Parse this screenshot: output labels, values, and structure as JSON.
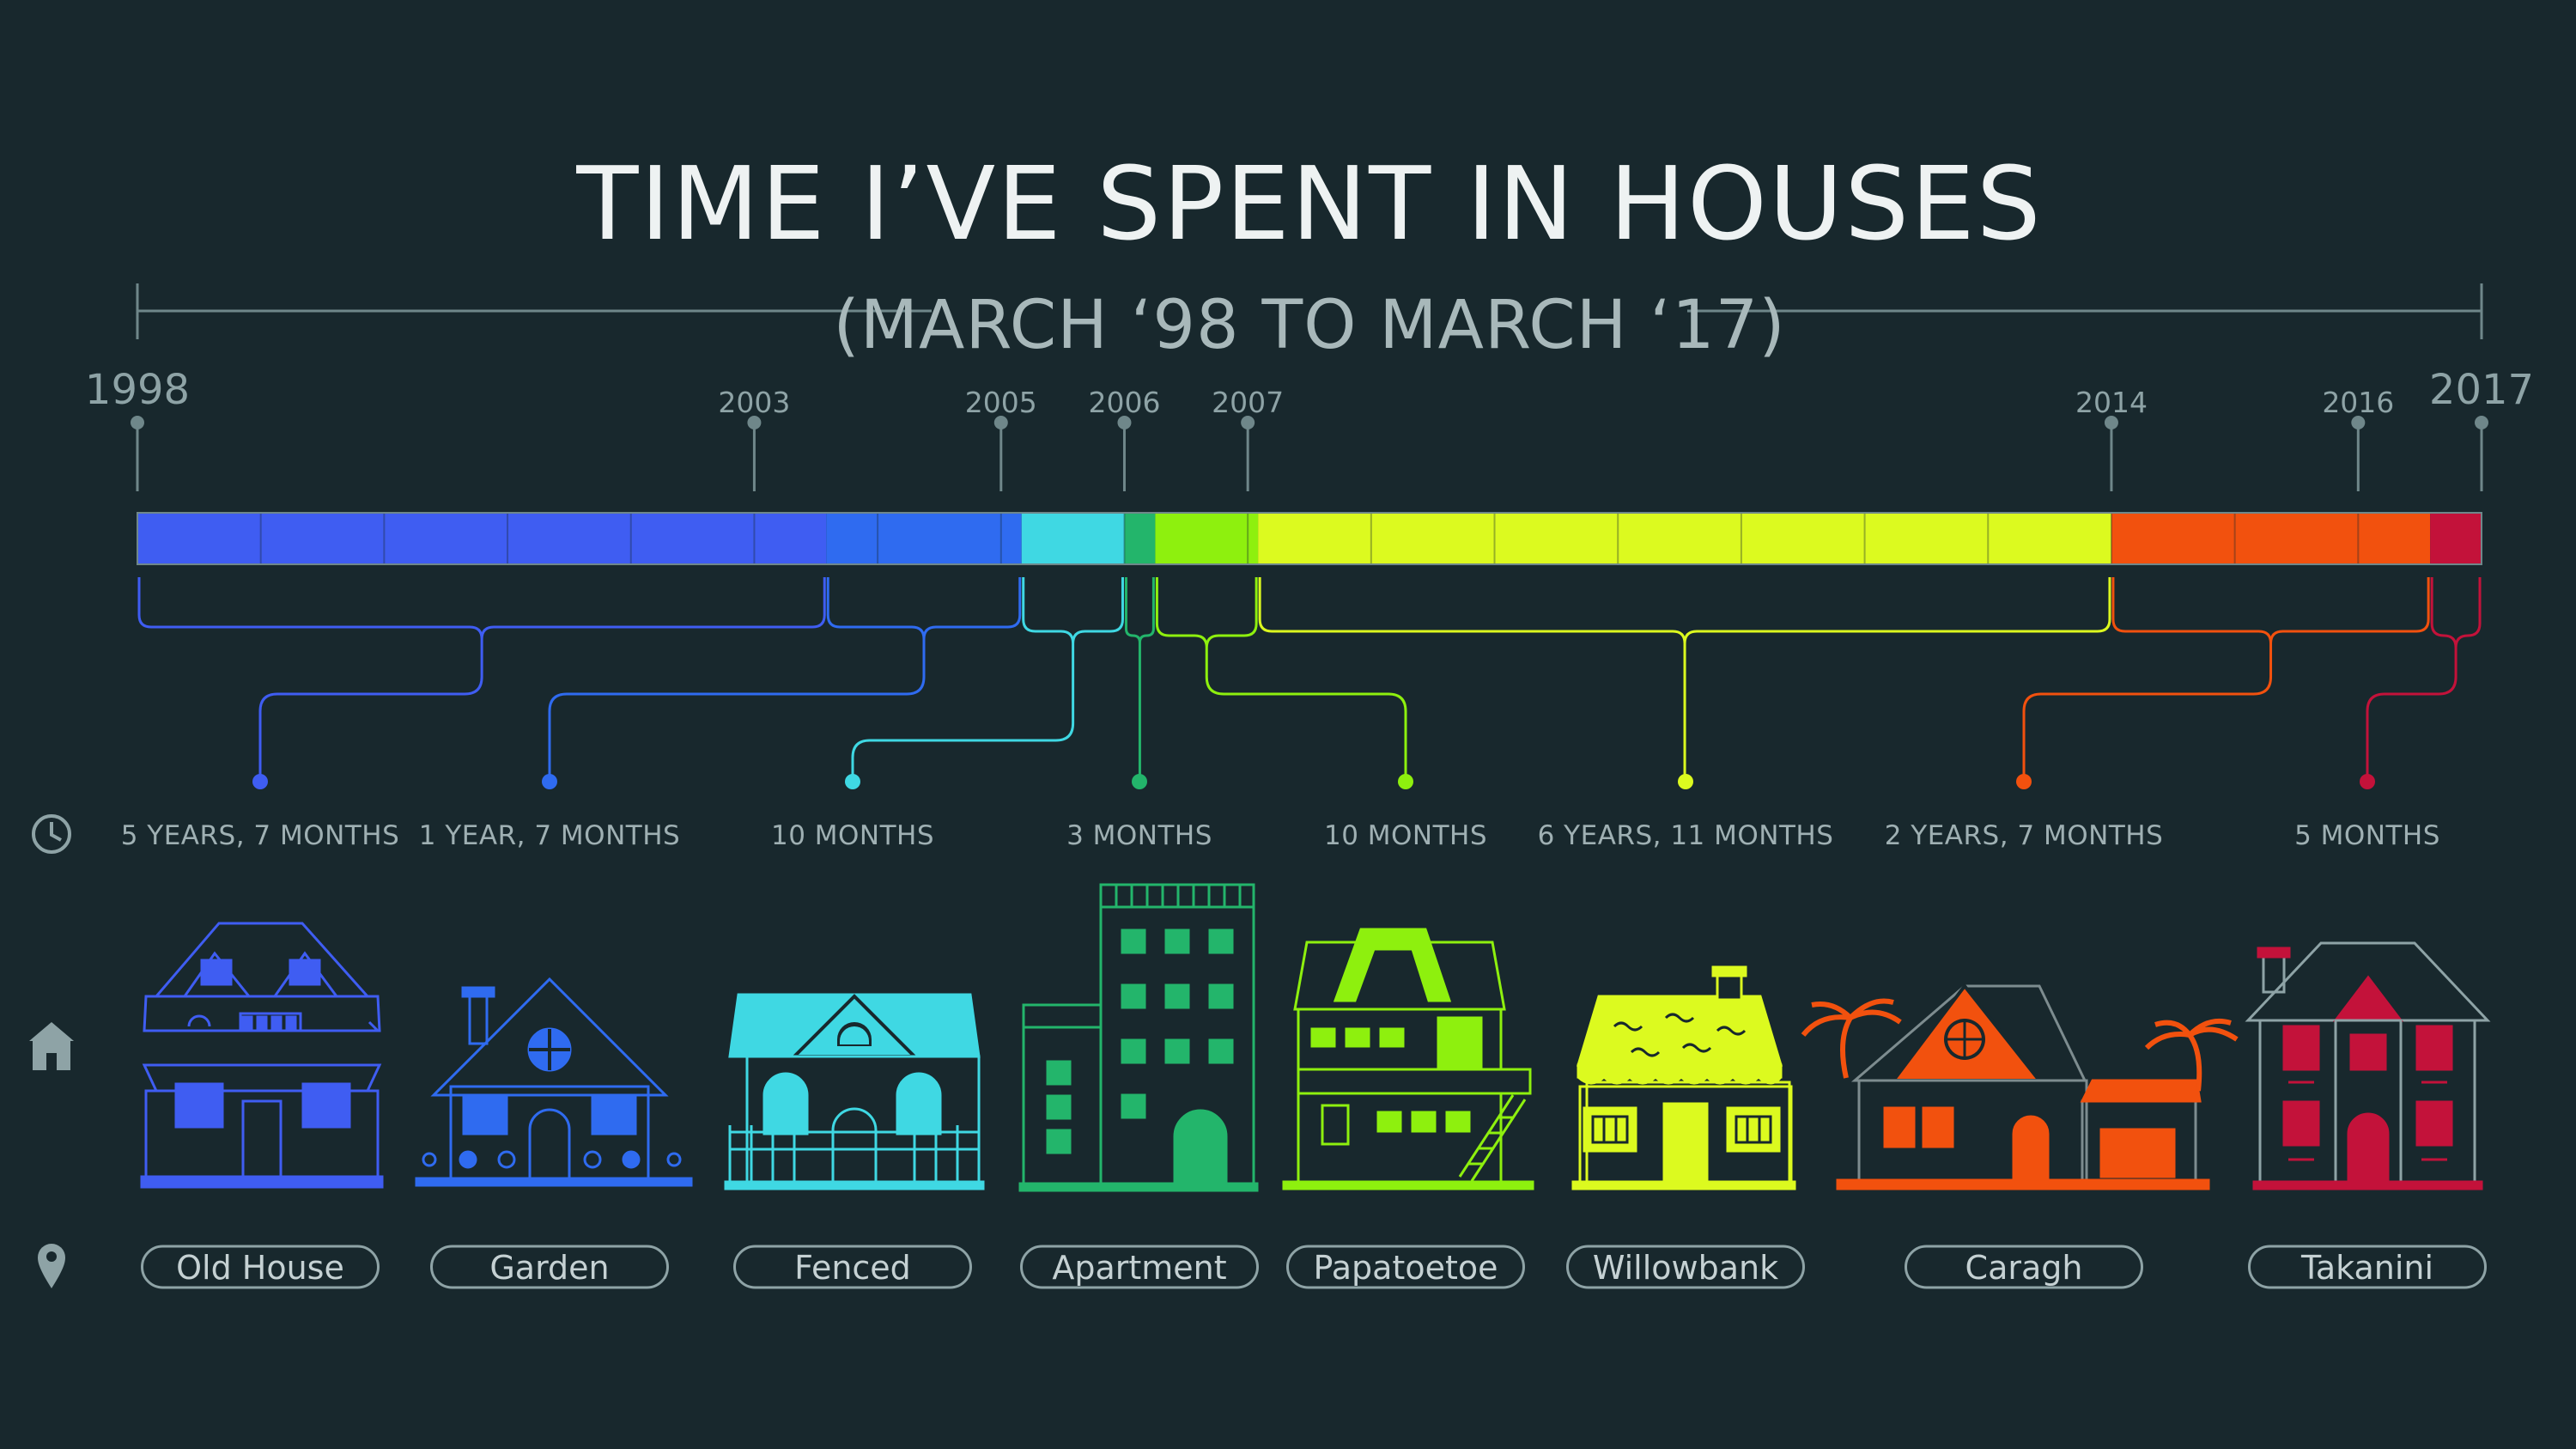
{
  "title": "TIME I’VE SPENT IN HOUSES",
  "subtitle": "(MARCH ‘98 TO MARCH ‘17)",
  "start_year": "1998",
  "end_year": "2017",
  "colors": {
    "background": "#18282d",
    "axis": "#6f878a",
    "Old House": "#3f5df2",
    "Garden": "#2f6bf0",
    "Fenced": "#3fd8e3",
    "Apartment": "#23b56b",
    "Papatoetoe": "#8ef00e",
    "Willowbank": "#dcfa1f",
    "Caragh": "#f2510e",
    "Takanini": "#c3123a"
  },
  "chart_data": {
    "type": "bar",
    "title": "TIME I’VE SPENT IN HOUSES",
    "subtitle": "(MARCH ‘98 TO MARCH ‘17)",
    "x_range": [
      "1998",
      "2017"
    ],
    "tick_labels": [
      "1998",
      "2003",
      "2005",
      "2006",
      "2007",
      "2014",
      "2016",
      "2017"
    ],
    "categories": [
      "Old House",
      "Garden",
      "Fenced",
      "Apartment",
      "Papatoetoe",
      "Willowbank",
      "Caragh",
      "Takanini"
    ],
    "duration_labels": [
      "5 YEARS, 7 MONTHS",
      "1 YEAR, 7 MONTHS",
      "10 MONTHS",
      "3 MONTHS",
      "10 MONTHS",
      "6 YEARS, 11 MONTHS",
      "2 YEARS, 7 MONTHS",
      "5 MONTHS"
    ],
    "values_months": [
      67,
      19,
      10,
      3,
      10,
      83,
      31,
      5
    ],
    "icons": [
      "clock-icon",
      "house-icon",
      "location-pin-icon"
    ]
  }
}
